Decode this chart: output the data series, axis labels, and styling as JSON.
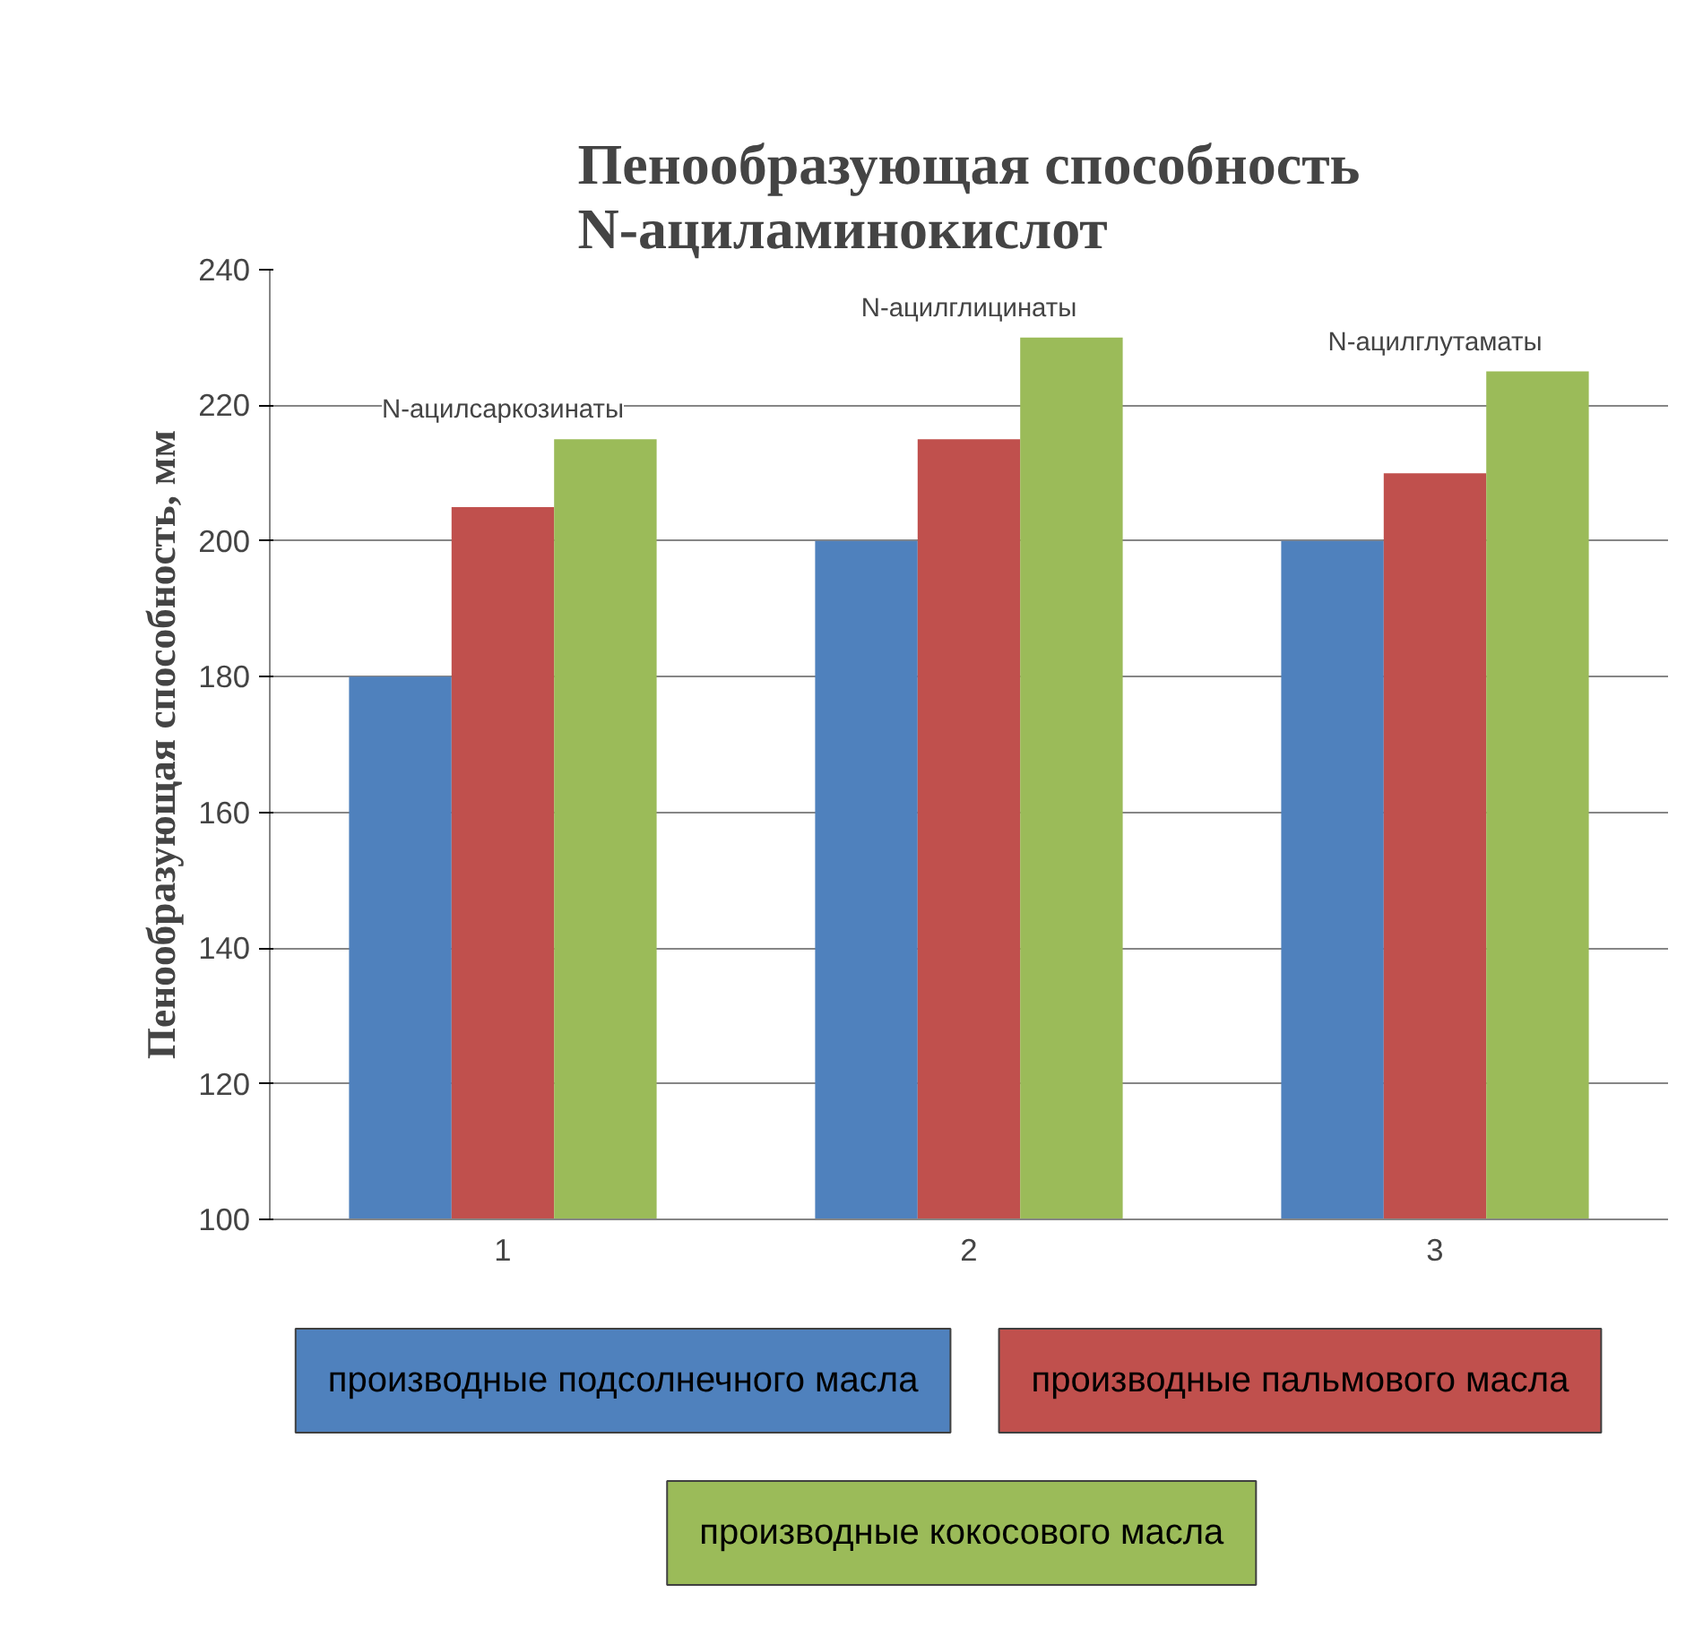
{
  "chart_data": {
    "type": "bar",
    "title": "Пенообразующая способность N-ациламинокислот",
    "ylabel": "Пенообразующая способность, мм",
    "categories": [
      "1",
      "2",
      "3"
    ],
    "series": [
      {
        "name": "производные подсолнечного масла",
        "color": "#4f81bd",
        "values": [
          180,
          200,
          200
        ]
      },
      {
        "name": "производные пальмового масла",
        "color": "#c0504d",
        "values": [
          205,
          215,
          210
        ]
      },
      {
        "name": "производные кокосового масла",
        "color": "#9bbb59",
        "values": [
          215,
          230,
          225
        ]
      }
    ],
    "ylim": [
      100,
      240
    ],
    "yticks": [
      100,
      120,
      140,
      160,
      180,
      200,
      220,
      240
    ],
    "grid": "y",
    "legend": "bottom",
    "annotations": [
      "N-ацилсаркозинаты",
      "N-ацилглицинаты",
      "N-ацилглутаматы"
    ]
  }
}
